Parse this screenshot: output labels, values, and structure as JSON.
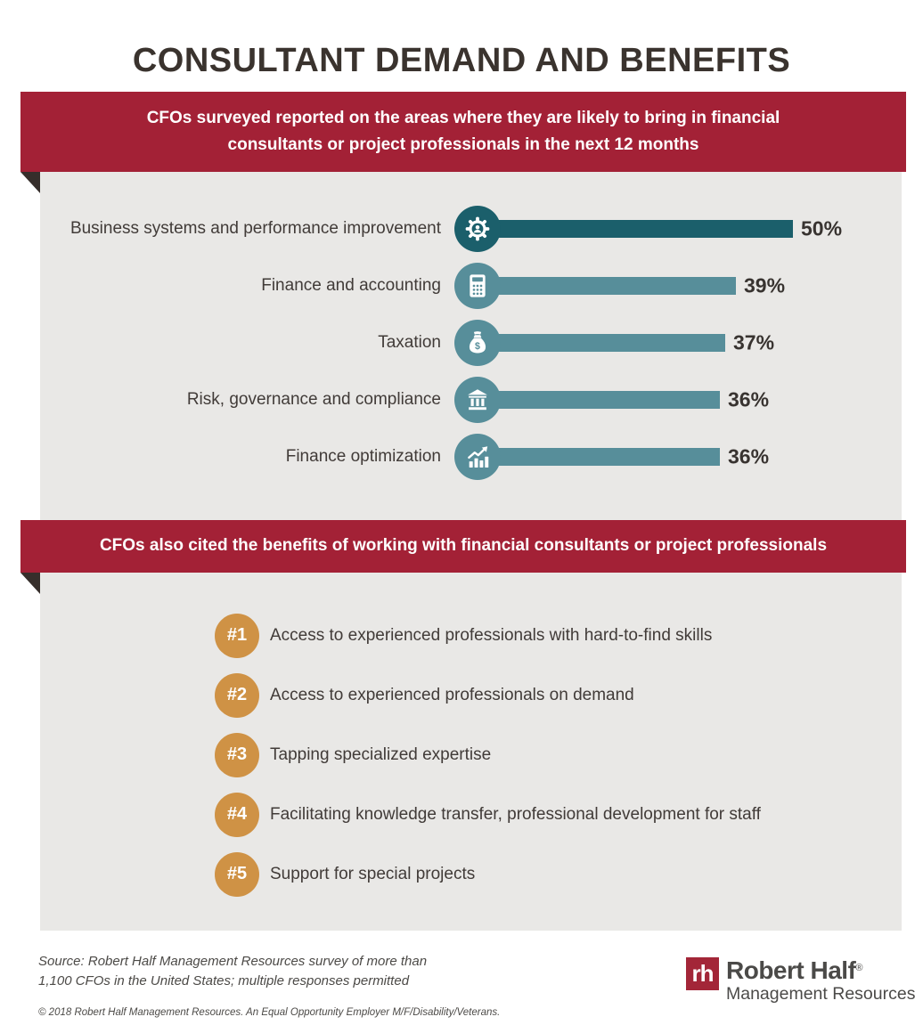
{
  "title": "CONSULTANT DEMAND AND BENEFITS",
  "banner1": {
    "text": "CFOs surveyed reported on the areas where they are likely to bring in financial consultants or project professionals in the next 12 months"
  },
  "banner2": {
    "text": "CFOs also cited the benefits of working with financial consultants or project professionals"
  },
  "chart_data": {
    "type": "bar",
    "orientation": "horizontal",
    "title": "Areas where CFOs are likely to bring in financial consultants or project professionals in the next 12 months",
    "categories": [
      "Business systems and performance improvement",
      "Finance and accounting",
      "Taxation",
      "Risk, governance and compliance",
      "Finance optimization"
    ],
    "values": [
      50,
      39,
      37,
      36,
      36
    ],
    "value_labels": [
      "50%",
      "39%",
      "37%",
      "36%",
      "36%"
    ],
    "unit": "%",
    "xlim": [
      0,
      55
    ],
    "grid": false,
    "legend": "none",
    "icons": [
      "gear-icon",
      "calculator-icon",
      "money-bag-icon",
      "bank-icon",
      "growth-chart-icon"
    ],
    "bar_colors": [
      "#1b5f6b",
      "#578e9a",
      "#578e9a",
      "#578e9a",
      "#578e9a"
    ]
  },
  "benefits": {
    "items": [
      {
        "rank": "#1",
        "text": "Access to experienced professionals with hard-to-find skills"
      },
      {
        "rank": "#2",
        "text": "Access to experienced professionals on demand"
      },
      {
        "rank": "#3",
        "text": "Tapping specialized expertise"
      },
      {
        "rank": "#4",
        "text": "Facilitating knowledge transfer, professional development for staff"
      },
      {
        "rank": "#5",
        "text": "Support for special projects"
      }
    ],
    "badge_color": "#cf9245"
  },
  "footer": {
    "source_line1": "Source: Robert Half Management Resources survey of more than",
    "source_line2": "1,100 CFOs in the United States; multiple responses permitted",
    "copyright": "© 2018 Robert Half Management Resources. An Equal Opportunity Employer M/F/Disability/Veterans.",
    "logo": {
      "monogram": "rh",
      "name": "Robert Half",
      "registered": "®",
      "division": "Management Resources"
    }
  },
  "colors": {
    "banner_red": "#a32136",
    "panel_gray": "#e9e8e6",
    "fold_dark": "#362e2b",
    "teal_dark": "#1b5f6b",
    "teal_light": "#578e9a",
    "orange": "#cf9245",
    "logo_red": "#a32638",
    "text_dark": "#3a332e"
  }
}
